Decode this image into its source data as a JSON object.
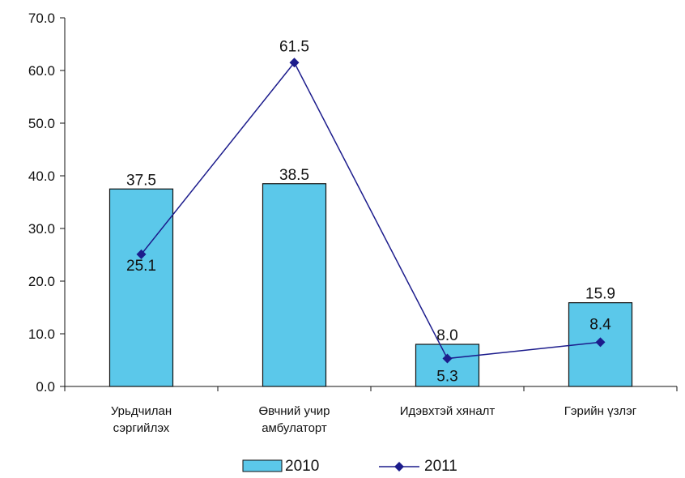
{
  "chart_data": {
    "type": "bar",
    "categories": [
      [
        "Урьдчилан",
        "сэргийлэх"
      ],
      [
        "Өвчний учир",
        "амбулаторт"
      ],
      [
        "Идэвхтэй хяналт"
      ],
      [
        "Гэрийн үзлэг"
      ]
    ],
    "series": [
      {
        "name": "2010",
        "type": "bar",
        "values": [
          37.5,
          38.5,
          8.0,
          15.9
        ],
        "labels": [
          "37.5",
          "38.5",
          "8.0",
          "15.9"
        ],
        "color": "#5bc8ea"
      },
      {
        "name": "2011",
        "type": "line",
        "values": [
          25.1,
          61.5,
          5.3,
          8.4
        ],
        "labels": [
          "25.1",
          "61.5",
          "5.3",
          "8.4"
        ],
        "color": "#1c1c8c"
      }
    ],
    "ylim": [
      0,
      70
    ],
    "yticks": [
      {
        "value": 0,
        "label": "0.0"
      },
      {
        "value": 10,
        "label": "10.0"
      },
      {
        "value": 20,
        "label": "20.0"
      },
      {
        "value": 30,
        "label": "30.0"
      },
      {
        "value": 40,
        "label": "40.0"
      },
      {
        "value": 50,
        "label": "50.0"
      },
      {
        "value": 60,
        "label": "60.0"
      },
      {
        "value": 70,
        "label": "70.0"
      }
    ],
    "grid": false,
    "legend": "bottom",
    "title": "",
    "xlabel": "",
    "ylabel": ""
  }
}
